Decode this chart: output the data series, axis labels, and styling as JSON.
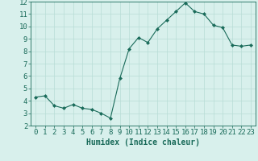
{
  "x": [
    0,
    1,
    2,
    3,
    4,
    5,
    6,
    7,
    8,
    9,
    10,
    11,
    12,
    13,
    14,
    15,
    16,
    17,
    18,
    19,
    20,
    21,
    22,
    23
  ],
  "y": [
    4.3,
    4.4,
    3.6,
    3.4,
    3.7,
    3.4,
    3.3,
    3.0,
    2.6,
    5.8,
    8.2,
    9.1,
    8.7,
    9.8,
    10.5,
    11.2,
    11.9,
    11.2,
    11.0,
    10.1,
    9.9,
    8.5,
    8.4,
    8.5
  ],
  "line_color": "#1a6b5a",
  "marker": "D",
  "marker_size": 2.0,
  "background_color": "#d8f0ec",
  "grid_color": "#b8dcd6",
  "xlabel": "Humidex (Indice chaleur)",
  "xlim": [
    -0.5,
    23.5
  ],
  "ylim": [
    2,
    12
  ],
  "yticks": [
    2,
    3,
    4,
    5,
    6,
    7,
    8,
    9,
    10,
    11,
    12
  ],
  "xticks": [
    0,
    1,
    2,
    3,
    4,
    5,
    6,
    7,
    8,
    9,
    10,
    11,
    12,
    13,
    14,
    15,
    16,
    17,
    18,
    19,
    20,
    21,
    22,
    23
  ],
  "label_fontsize": 7,
  "tick_fontsize": 6.5
}
